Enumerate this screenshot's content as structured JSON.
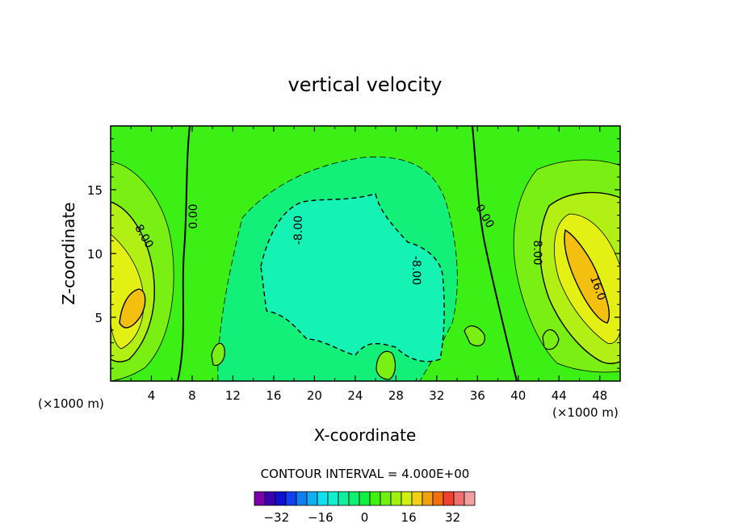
{
  "chart_data": {
    "type": "heatmap",
    "title": "vertical velocity",
    "xlabel": "X-coordinate",
    "ylabel": "Z-coordinate",
    "x_unit_label": "(×1000 m)",
    "x_unit_label_right": "(×1000 m)",
    "xlim": [
      0,
      50
    ],
    "ylim": [
      0,
      20
    ],
    "x_ticks": [
      4,
      8,
      12,
      16,
      20,
      24,
      28,
      32,
      36,
      40,
      44,
      48
    ],
    "y_ticks": [
      5,
      10,
      15
    ],
    "contour_interval_text": "CONTOUR INTERVAL = 4.000E+00",
    "contour_labels": [
      "8.00",
      "0.00",
      "-8.00",
      "-8.00",
      "0.00",
      "8.00",
      "16.0"
    ],
    "colorbar": {
      "ticks": [
        "−32",
        "−16",
        "0",
        "16",
        "32"
      ],
      "tick_values": [
        -32,
        -16,
        0,
        16,
        32
      ],
      "levels": [
        -40,
        -36,
        -32,
        -28,
        -24,
        -20,
        -16,
        -12,
        -8,
        -4,
        0,
        4,
        8,
        12,
        16,
        20,
        24,
        28,
        32,
        36,
        40
      ],
      "colors": [
        "#7a00a8",
        "#3a00b0",
        "#1010d0",
        "#1040f0",
        "#1080f0",
        "#10b0f0",
        "#10e0f0",
        "#10f0d0",
        "#10f0a0",
        "#10f070",
        "#10f040",
        "#40f010",
        "#70f010",
        "#a0f010",
        "#d0f010",
        "#f0d010",
        "#f0a010",
        "#f07010",
        "#f04030",
        "#f07070",
        "#f0a0a0"
      ]
    },
    "fill_colors": {
      "background": "#3cf016",
      "neg4": "#12f07a",
      "neg8": "#14f2b4",
      "pos4": "#7aef14",
      "pos8": "#b2ef14",
      "pos12": "#e4ef14",
      "pos16": "#f4c010"
    }
  }
}
